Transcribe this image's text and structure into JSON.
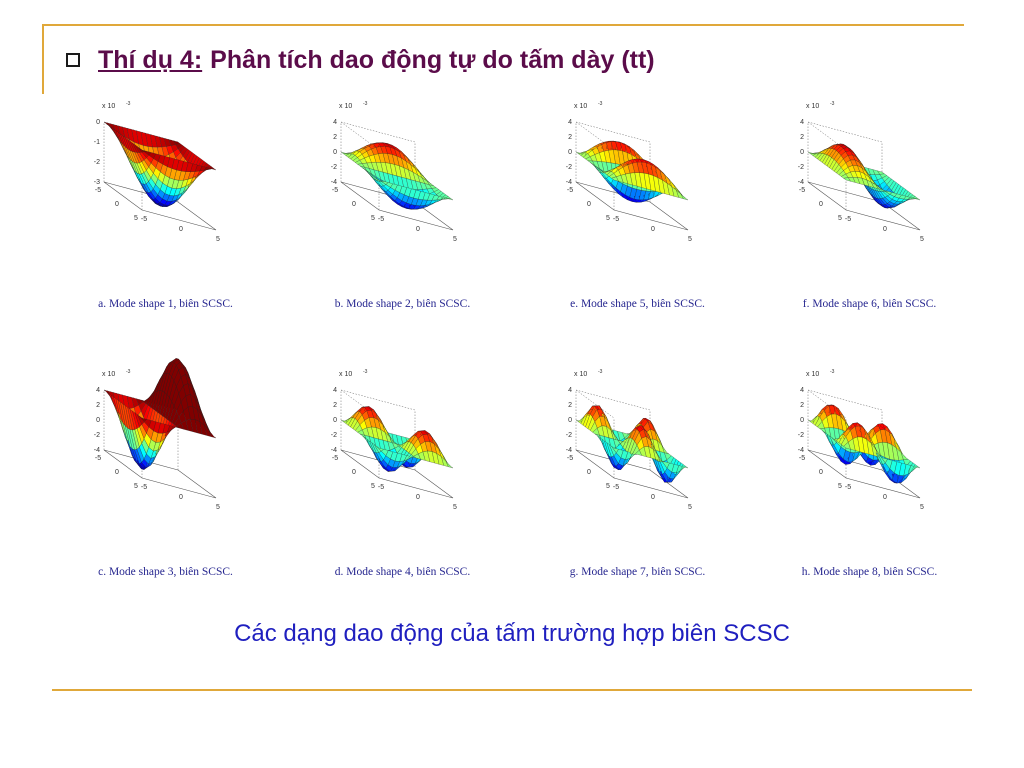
{
  "header": {
    "lead": "Thí dụ 4:",
    "title": "Phân tích dao động tự do tấm dày (tt)"
  },
  "caption": "Các dạng dao động của tấm trường hợp biên SCSC",
  "axes": {
    "exponent": "x 10",
    "exponent_power": "-3"
  },
  "chart_data": [
    {
      "type": "surface",
      "label": "a. Mode shape 1, biên SCSC.",
      "mode": [
        1,
        1
      ],
      "sign": -1,
      "zticks": [
        "0",
        "-1",
        "-2",
        "-3"
      ],
      "xticks": [
        "5",
        "0",
        "-5"
      ],
      "yticks": [
        "-5",
        "0",
        "5"
      ]
    },
    {
      "type": "surface",
      "label": "b. Mode shape 2, biên SCSC.",
      "mode": [
        1,
        2
      ],
      "sign": 1,
      "zticks": [
        "4",
        "2",
        "0",
        "-2",
        "-4"
      ],
      "xticks": [
        "5",
        "0",
        "-5"
      ],
      "yticks": [
        "-5",
        "0",
        "5"
      ]
    },
    {
      "type": "surface",
      "label": "e. Mode shape 5, biên SCSC.",
      "mode": [
        1,
        3
      ],
      "sign": 1,
      "zticks": [
        "4",
        "2",
        "0",
        "-2",
        "-4"
      ],
      "xticks": [
        "5",
        "0",
        "-5"
      ],
      "yticks": [
        "-5",
        "0",
        "5"
      ]
    },
    {
      "type": "surface",
      "label": "f. Mode shape 6, biên SCSC.",
      "mode": [
        2,
        1
      ],
      "sign": 1,
      "zticks": [
        "4",
        "2",
        "0",
        "-2",
        "-4"
      ],
      "xticks": [
        "5",
        "0",
        "-5"
      ],
      "yticks": [
        "-5",
        "0",
        "5"
      ]
    },
    {
      "type": "surface",
      "label": "c. Mode shape 3, biên SCSC.",
      "mode": [
        2,
        1
      ],
      "sign": -1,
      "zticks": [
        "4",
        "2",
        "0",
        "-2",
        "-4"
      ],
      "xticks": [
        "5",
        "0",
        "-5"
      ],
      "yticks": [
        "-5",
        "0",
        "5"
      ]
    },
    {
      "type": "surface",
      "label": "d. Mode shape 4, biên SCSC.",
      "mode": [
        2,
        2
      ],
      "sign": 1,
      "zticks": [
        "4",
        "2",
        "0",
        "-2",
        "-4"
      ],
      "xticks": [
        "5",
        "0",
        "-5"
      ],
      "yticks": [
        "-5",
        "0",
        "5"
      ]
    },
    {
      "type": "surface",
      "label": "g. Mode shape 7, biên SCSC.",
      "mode": [
        3,
        2
      ],
      "sign": 1,
      "zticks": [
        "4",
        "2",
        "0",
        "-2",
        "-4"
      ],
      "xticks": [
        "5",
        "0",
        "-5"
      ],
      "yticks": [
        "-5",
        "0",
        "5"
      ]
    },
    {
      "type": "surface",
      "label": "h. Mode shape 8, biên SCSC.",
      "mode": [
        2,
        3
      ],
      "sign": 1,
      "zticks": [
        "4",
        "2",
        "0",
        "-2",
        "-4"
      ],
      "xticks": [
        "5",
        "0",
        "-5"
      ],
      "yticks": [
        "-5",
        "0",
        "5"
      ]
    }
  ]
}
